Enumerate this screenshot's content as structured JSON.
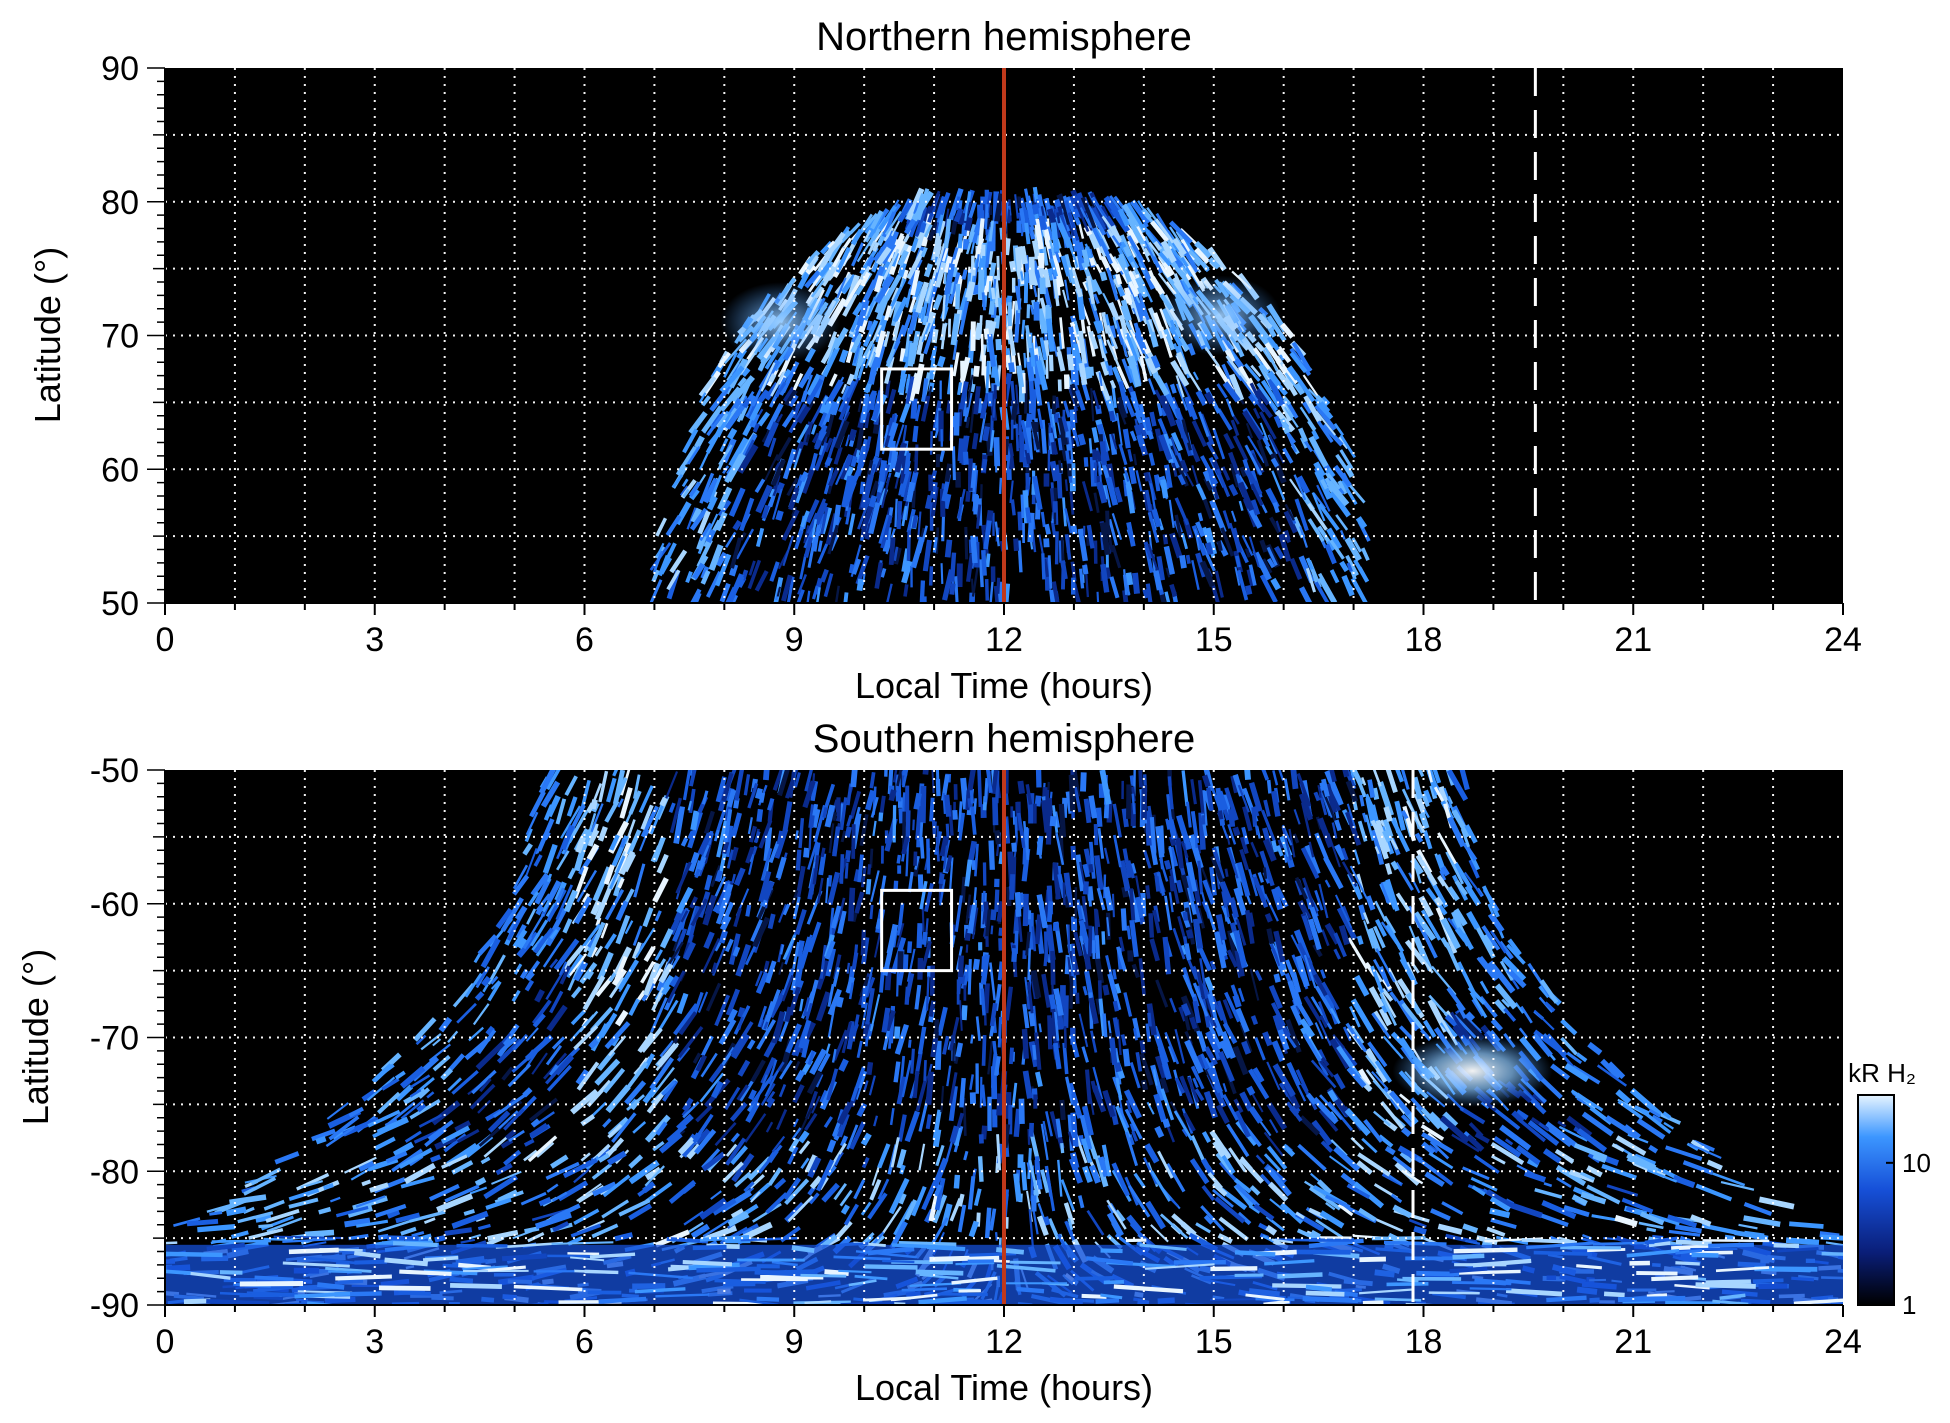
{
  "chart_data": [
    {
      "type": "heatmap",
      "title": "Northern hemisphere",
      "xlabel": "Local Time (hours)",
      "ylabel": "Latitude (°)",
      "xlim": [
        0,
        24
      ],
      "ylim": [
        50,
        90
      ],
      "x_ticks": [
        "0",
        "3",
        "6",
        "9",
        "12",
        "15",
        "18",
        "21",
        "24"
      ],
      "x_tick_values": [
        0,
        3,
        6,
        9,
        12,
        15,
        18,
        21,
        24
      ],
      "y_ticks": [
        "50",
        "60",
        "70",
        "80",
        "90"
      ],
      "y_tick_values": [
        50,
        60,
        70,
        80,
        90
      ],
      "grid": true,
      "emission_region": {
        "lt_min": 7.0,
        "lt_max": 17.3,
        "lat_min": 50,
        "lat_max": 80
      },
      "bright_band": {
        "lat_min": 66,
        "lat_max": 78
      },
      "noon_line_lt": 12,
      "dashed_line_lt": 19.6,
      "box": {
        "lt_min": 10.25,
        "lt_max": 11.25,
        "lat_min": 61.5,
        "lat_max": 67.5
      }
    },
    {
      "type": "heatmap",
      "title": "Southern hemisphere",
      "xlabel": "Local Time (hours)",
      "ylabel": "Latitude (°)",
      "xlim": [
        0,
        24
      ],
      "ylim": [
        -90,
        -50
      ],
      "x_ticks": [
        "0",
        "3",
        "6",
        "9",
        "12",
        "15",
        "18",
        "21",
        "24"
      ],
      "x_tick_values": [
        0,
        3,
        6,
        9,
        12,
        15,
        18,
        21,
        24
      ],
      "y_ticks": [
        "-50",
        "-60",
        "-70",
        "-80",
        "-90"
      ],
      "y_tick_values": [
        -50,
        -60,
        -70,
        -80,
        -90
      ],
      "grid": true,
      "emission_region": {
        "lt_min": 5.3,
        "lt_max": 18.6,
        "lat_min": -90,
        "lat_max": -50
      },
      "bright_patch": {
        "lt_center": 18.7,
        "lat_center": -72.5
      },
      "noon_line_lt": 12,
      "dashed_line_lt": 17.85,
      "box": {
        "lt_min": 10.25,
        "lt_max": 11.25,
        "lat_min": -65,
        "lat_max": -59
      }
    }
  ],
  "colorbar": {
    "label": "kR H₂",
    "ticks": [
      "1",
      "10"
    ],
    "tick_values": [
      1,
      10
    ],
    "range": [
      1,
      30
    ],
    "scale": "log",
    "colors": [
      "#000000",
      "#0a1e78",
      "#1650d8",
      "#3c96ff",
      "#e6f4ff"
    ]
  },
  "colors": {
    "background": "#000000",
    "emission": "#1e6ef0",
    "noon_line": "#c0391b",
    "grid": "#ffffff"
  }
}
